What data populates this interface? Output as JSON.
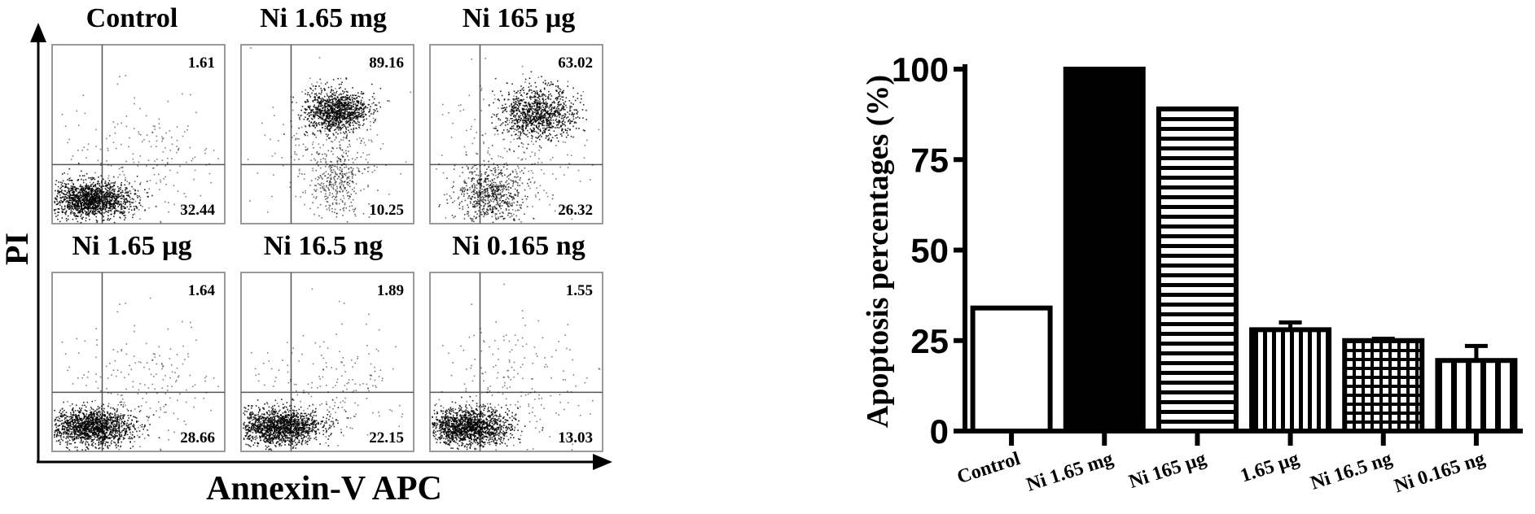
{
  "flow_panel": {
    "y_axis_label": "PI",
    "x_axis_label": "Annexin-V APC",
    "plots": [
      {
        "title": "Control",
        "upper_right": "1.61",
        "lower_right": "32.44",
        "population": "live"
      },
      {
        "title": "Ni 1.65 mg",
        "upper_right": "89.16",
        "lower_right": "10.25",
        "population": "late"
      },
      {
        "title": "Ni 165 µg",
        "upper_right": "63.02",
        "lower_right": "26.32",
        "population": "mixed"
      },
      {
        "title": "Ni 1.65 µg",
        "upper_right": "1.64",
        "lower_right": "28.66",
        "population": "live"
      },
      {
        "title": "Ni 16.5 ng",
        "upper_right": "1.89",
        "lower_right": "22.15",
        "population": "live"
      },
      {
        "title": "Ni 0.165 ng",
        "upper_right": "1.55",
        "lower_right": "13.03",
        "population": "live"
      }
    ]
  },
  "chart_data": {
    "type": "bar",
    "title": "",
    "xlabel": "",
    "ylabel": "Apoptosis percentages (%)",
    "ylim": [
      0,
      100
    ],
    "yticks": [
      0,
      25,
      50,
      75,
      100
    ],
    "categories": [
      "Control",
      "Ni 1.65 mg",
      "Ni 165 µg",
      "1.65 µg",
      "Ni 16.5 ng",
      "Ni 0.165 ng"
    ],
    "values": [
      34,
      100,
      89,
      28,
      25,
      19.5
    ],
    "errors": [
      0,
      0,
      0,
      2,
      0.5,
      4
    ],
    "fills": [
      "open",
      "solid",
      "horizontal-stripes",
      "vertical-stripes",
      "grid",
      "vertical-stripes-wide"
    ],
    "grid": false
  }
}
